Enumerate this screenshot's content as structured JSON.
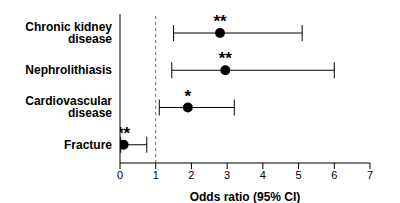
{
  "chart_data": {
    "type": "forest",
    "orientation": "horizontal",
    "categories": [
      "Chronic kidney disease",
      "Nephrolithiasis",
      "Cardiovascular disease",
      "Fracture"
    ],
    "values": [
      2.8,
      2.95,
      1.9,
      0.1
    ],
    "ci_lower": [
      1.5,
      1.45,
      1.1,
      0.02
    ],
    "ci_upper": [
      5.1,
      6.0,
      3.2,
      0.75
    ],
    "annotations": [
      "**",
      "**",
      "*",
      "**"
    ],
    "x_label": "Odds ratio (95% CI)",
    "xlim": [
      0,
      7
    ],
    "xticks": [
      0,
      1,
      2,
      3,
      4,
      5,
      6,
      7
    ],
    "reference_line": 1,
    "color": "#000000",
    "marker": "circle",
    "grid": false
  }
}
